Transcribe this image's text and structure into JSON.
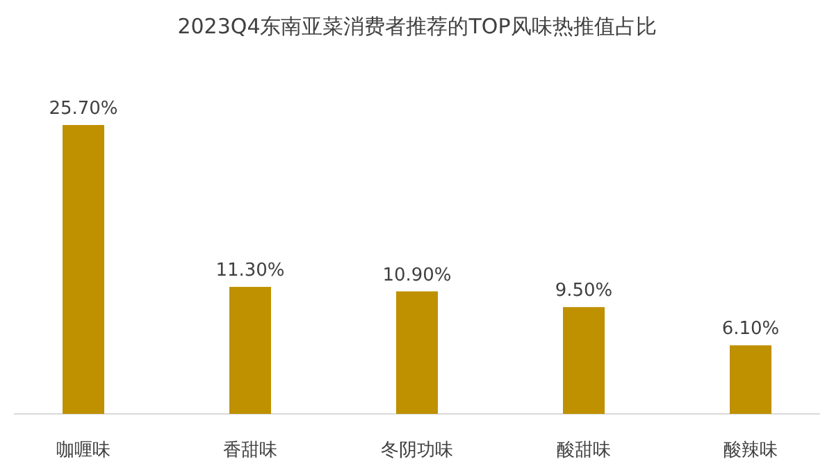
{
  "chart_data": {
    "type": "bar",
    "title": "2023Q4东南亚菜消费者推荐的TOP风味热推值占比",
    "categories": [
      "咖喱味",
      "香甜味",
      "冬阴功味",
      "酸甜味",
      "酸辣味"
    ],
    "values": [
      25.7,
      11.3,
      10.9,
      9.5,
      6.1
    ],
    "value_labels": [
      "25.70%",
      "11.30%",
      "10.90%",
      "9.50%",
      "6.10%"
    ],
    "color": "#bf9000"
  }
}
